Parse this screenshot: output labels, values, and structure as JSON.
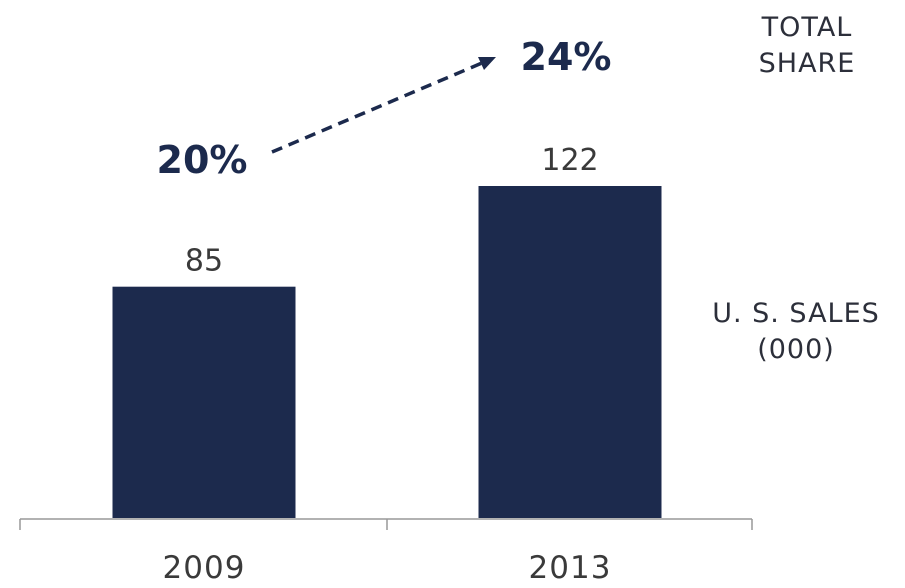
{
  "chart_data": {
    "type": "bar",
    "categories": [
      "2009",
      "2013"
    ],
    "series": [
      {
        "values": [
          85,
          122
        ]
      }
    ],
    "value_labels": [
      "85",
      "122"
    ],
    "share_labels": [
      "20%",
      "24%"
    ],
    "share_values": [
      20,
      24
    ],
    "ylim": [
      0,
      122
    ],
    "grid": false,
    "legend": "none",
    "bar_color": "#1c2a4d",
    "axis_color": "#999999"
  },
  "labels": {
    "total_share_line1": "TOTAL",
    "total_share_line2": "SHARE",
    "sales_line1": "U. S. SALES",
    "sales_line2": "(000)"
  },
  "colors": {
    "bar": "#1c2a4d",
    "share_text": "#1c2a4d",
    "value_text": "#3a3a3a",
    "axis": "#999999"
  }
}
